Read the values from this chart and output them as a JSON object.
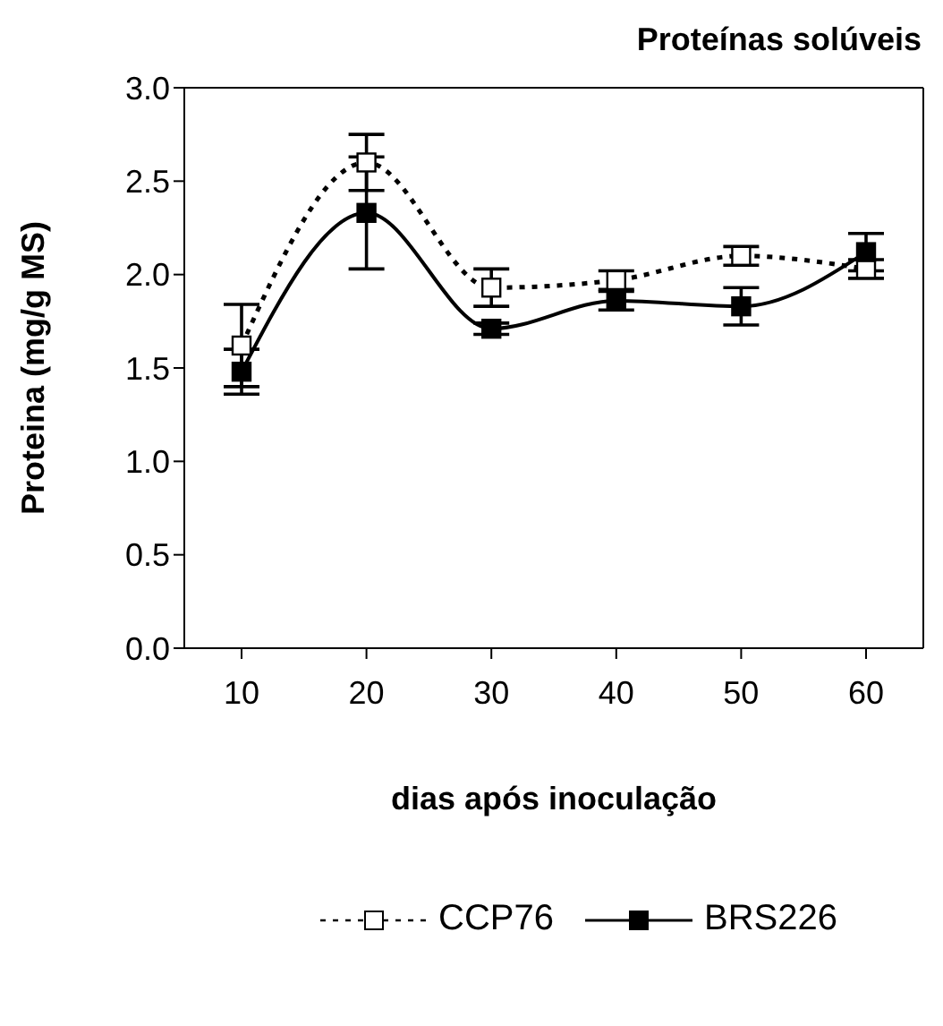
{
  "chart_data": {
    "type": "line",
    "title": "Proteínas solúveis",
    "xlabel": "dias após inoculação",
    "ylabel": "Proteina (mg/g MS)",
    "categories": [
      "10",
      "20",
      "30",
      "40",
      "50",
      "60"
    ],
    "series": [
      {
        "name": "CCP76",
        "color": "#000000",
        "line_style": "dotted",
        "values": [
          1.62,
          2.6,
          1.93,
          1.97,
          2.1,
          2.03
        ],
        "errors": [
          0.22,
          0.15,
          0.1,
          0.05,
          0.05,
          0.05
        ]
      },
      {
        "name": "BRS226",
        "color": "#000000",
        "line_style": "solid",
        "values": [
          1.48,
          2.33,
          1.71,
          1.86,
          1.83,
          2.12
        ],
        "errors": [
          0.12,
          0.3,
          0.03,
          0.05,
          0.1,
          0.1
        ]
      }
    ],
    "ylim": [
      0,
      3
    ],
    "yticks": [
      {
        "value": 0,
        "label": "0.0"
      },
      {
        "value": 0.5,
        "label": "0.5"
      },
      {
        "value": 1,
        "label": "1.0"
      },
      {
        "value": 1.5,
        "label": "1.5"
      },
      {
        "value": 2,
        "label": "2.0"
      },
      {
        "value": 2.5,
        "label": "2.5"
      },
      {
        "value": 3,
        "label": "3.0"
      }
    ],
    "grid": false,
    "legend": "bottom",
    "marker": "square"
  }
}
